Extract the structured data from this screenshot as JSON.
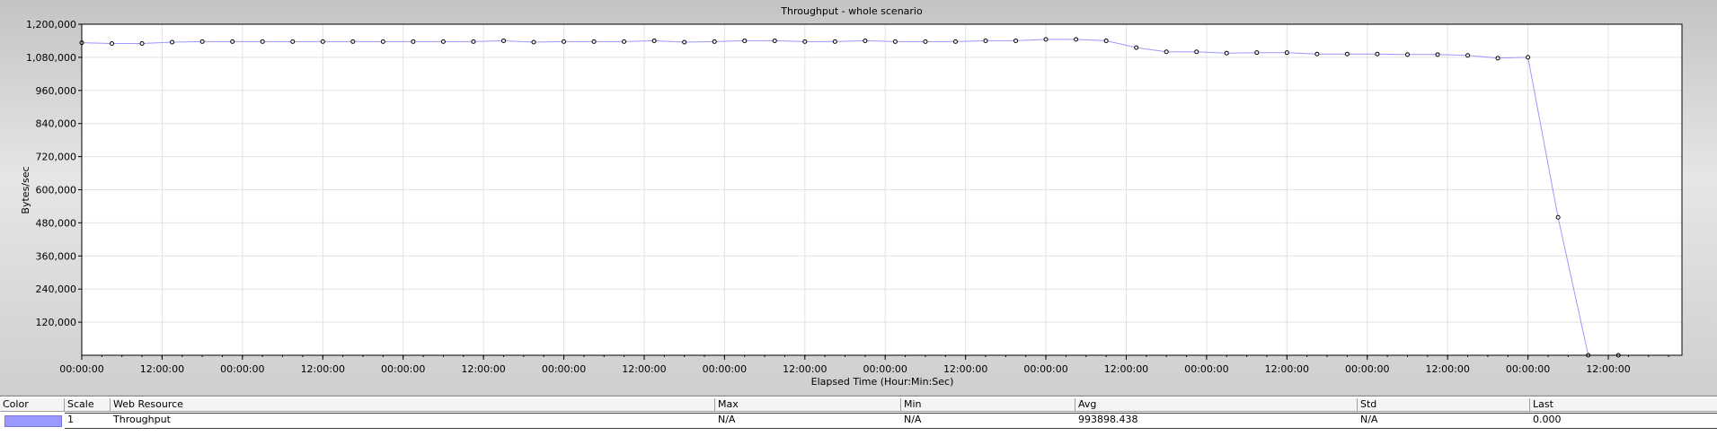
{
  "chart_data": {
    "type": "line",
    "title": "Throughput - whole scenario",
    "xlabel": "Elapsed Time (Hour:Min:Sec)",
    "ylabel": "Bytes/sec",
    "ylim": [
      0,
      1200000
    ],
    "y_ticks": [
      "1,200,000",
      "1,080,000",
      "960,000",
      "840,000",
      "720,000",
      "600,000",
      "480,000",
      "360,000",
      "240,000",
      "120,000"
    ],
    "y_tick_values": [
      1200000,
      1080000,
      960000,
      840000,
      720000,
      600000,
      480000,
      360000,
      240000,
      120000
    ],
    "x_ticks": [
      "00:00:00",
      "12:00:00",
      "00:00:00",
      "12:00:00",
      "00:00:00",
      "12:00:00",
      "00:00:00",
      "12:00:00",
      "00:00:00",
      "12:00:00",
      "00:00:00",
      "12:00:00",
      "00:00:00",
      "12:00:00",
      "00:00:00",
      "12:00:00",
      "00:00:00",
      "12:00:00",
      "00:00:00",
      "12:00:00"
    ],
    "x_tick_hours": [
      0,
      12,
      24,
      36,
      48,
      60,
      72,
      84,
      96,
      108,
      120,
      132,
      144,
      156,
      168,
      180,
      192,
      204,
      216,
      228
    ],
    "xlim_hours": [
      0,
      239
    ],
    "grid": true,
    "series": [
      {
        "name": "Throughput",
        "color": "#9999ff",
        "x_hours": [
          0,
          4.5,
          9,
          13.5,
          18,
          22.5,
          27,
          31.5,
          36,
          40.5,
          45,
          49.5,
          54,
          58.5,
          63,
          67.5,
          72,
          76.5,
          81,
          85.5,
          90,
          94.5,
          99,
          103.5,
          108,
          112.5,
          117,
          121.5,
          126,
          130.5,
          135,
          139.5,
          144,
          148.5,
          153,
          157.5,
          162,
          166.5,
          171,
          175.5,
          180,
          184.5,
          189,
          193.5,
          198,
          202.5,
          207,
          211.5,
          216,
          220.5,
          225,
          229.5
        ],
        "values": [
          1133000,
          1130000,
          1130000,
          1135000,
          1137000,
          1137000,
          1137000,
          1137000,
          1137000,
          1137000,
          1137000,
          1137000,
          1137000,
          1137000,
          1140000,
          1135000,
          1137000,
          1137000,
          1137000,
          1140000,
          1135000,
          1137000,
          1140000,
          1140000,
          1137000,
          1137000,
          1140000,
          1137000,
          1137000,
          1137000,
          1140000,
          1140000,
          1145000,
          1145000,
          1140000,
          1115000,
          1100000,
          1100000,
          1095000,
          1097000,
          1097000,
          1092000,
          1092000,
          1092000,
          1090000,
          1090000,
          1087000,
          1077000,
          1080000,
          500000,
          0,
          0
        ]
      }
    ]
  },
  "legend": {
    "headers": {
      "color": "Color",
      "scale": "Scale",
      "resource": "Web Resource",
      "max": "Max",
      "min": "Min",
      "avg": "Avg",
      "std": "Std",
      "last": "Last"
    },
    "rows": [
      {
        "swatch_color": "#9999ff",
        "scale": "1",
        "resource": "Throughput",
        "max": "N/A",
        "min": "N/A",
        "avg": "993898.438",
        "std": "N/A",
        "last": "0.000"
      }
    ]
  }
}
